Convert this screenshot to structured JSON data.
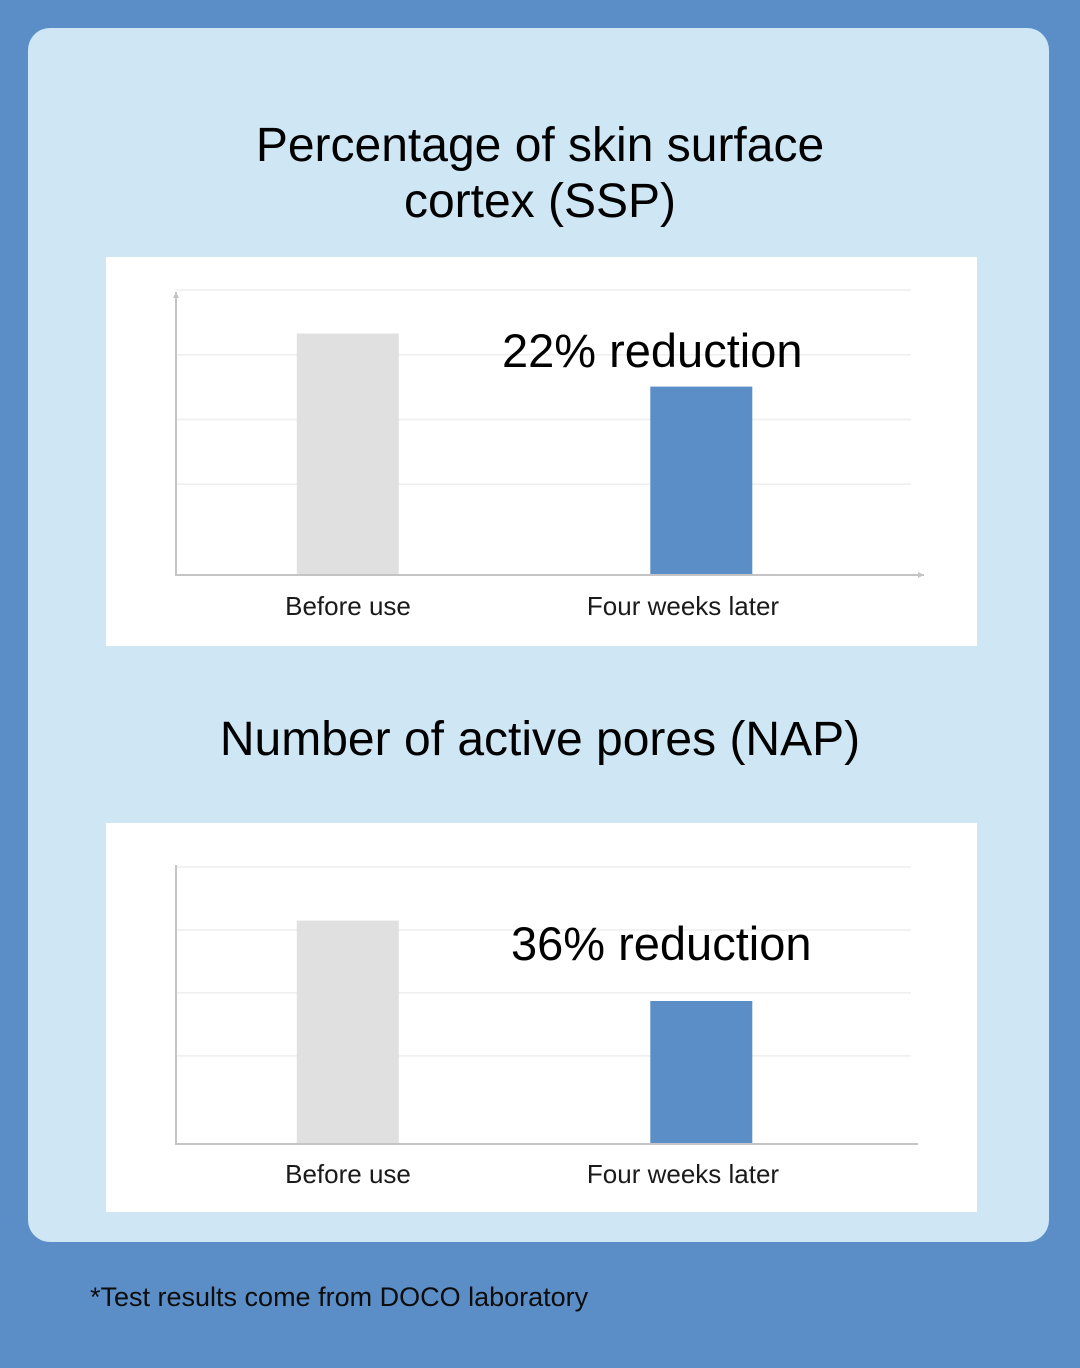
{
  "colors": {
    "background": "#5b8dc6",
    "panel": "#cfe7f5",
    "before_bar": "#e0e0e0",
    "after_bar": "#5b8dc6"
  },
  "footnote": "*Test results come from DOCO laboratory",
  "chart_data": [
    {
      "type": "bar",
      "title": "Percentage of skin surface\ncortex (SSP)",
      "annotation": "22% reduction",
      "categories": [
        "Before use",
        "Four weeks later"
      ],
      "values": [
        100,
        78
      ],
      "ylim": [
        0,
        118
      ],
      "grid": true,
      "bar_colors": [
        "#e0e0e0",
        "#5b8dc6"
      ]
    },
    {
      "type": "bar",
      "title": "Number of active pores (NAP)",
      "annotation": "36% reduction",
      "categories": [
        "Before use",
        "Four weeks later"
      ],
      "values": [
        100,
        64
      ],
      "ylim": [
        0,
        124
      ],
      "grid": true,
      "bar_colors": [
        "#e0e0e0",
        "#5b8dc6"
      ]
    }
  ]
}
